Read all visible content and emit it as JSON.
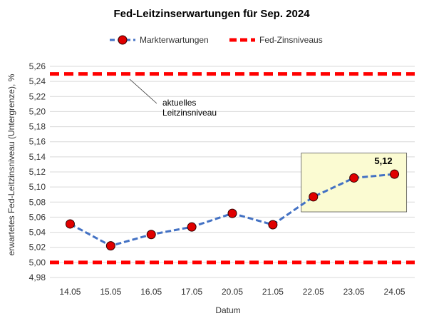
{
  "chart_data": {
    "type": "line",
    "title": "Fed-Leitzinserwartungen für Sep. 2024",
    "xlabel": "Datum",
    "ylabel": "erwartetes Fed-Leitzinsniveau (Untergrenze), %",
    "categories": [
      "14.05",
      "15.05",
      "16.05",
      "17.05",
      "20.05",
      "21.05",
      "22.05",
      "23.05",
      "24.05"
    ],
    "ylim": [
      4.98,
      5.26
    ],
    "yticks": [
      "4,98",
      "5,00",
      "5,02",
      "5,04",
      "5,06",
      "5,08",
      "5,10",
      "5,12",
      "5,14",
      "5,16",
      "5,18",
      "5,20",
      "5,22",
      "5,24",
      "5,26"
    ],
    "ytick_values": [
      4.98,
      5.0,
      5.02,
      5.04,
      5.06,
      5.08,
      5.1,
      5.12,
      5.14,
      5.16,
      5.18,
      5.2,
      5.22,
      5.24,
      5.26
    ],
    "grid": true,
    "legend_position": "top",
    "series": [
      {
        "name": "Markterwartungen",
        "values": [
          5.051,
          5.022,
          5.037,
          5.047,
          5.065,
          5.05,
          5.087,
          5.112,
          5.117
        ],
        "color": "#4472c4",
        "marker_color": "#e00000"
      }
    ],
    "reference_lines": {
      "name": "Fed-Zinsniveaus",
      "values": [
        5.25,
        5.0
      ],
      "color": "#ff0000"
    },
    "annotations": {
      "current_rate_line1": "aktuelles",
      "current_rate_line2": "Leitzinsniveau",
      "last_value_label": "5,12",
      "highlight_color": "#fbfbd2"
    }
  }
}
